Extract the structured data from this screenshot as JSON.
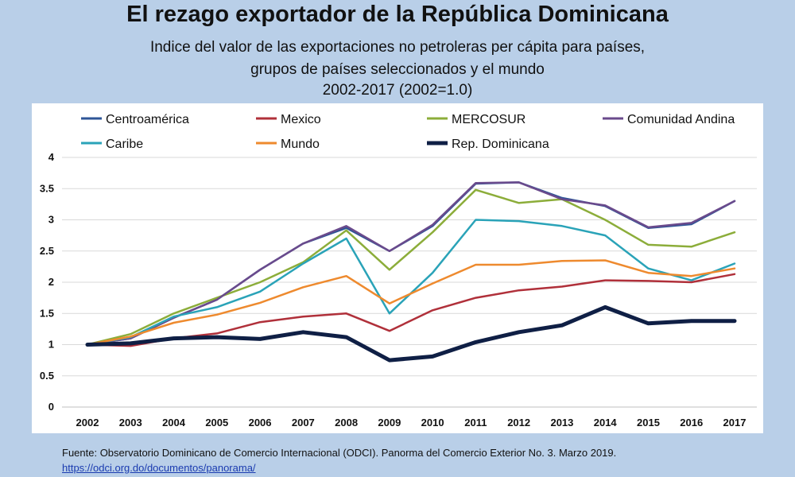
{
  "title": "El rezago exportador de la República Dominicana",
  "subtitle_lines": [
    "Indice del valor de las exportaciones no petroleras per cápita para países,",
    "grupos de países seleccionados y el mundo",
    "2002-2017 (2002=1.0)"
  ],
  "source": {
    "text": "Fuente: Observatorio Dominicano de Comercio Internacional (ODCI). Panorma del Comercio Exterior No. 3. Marzo 2019.",
    "link": "https://odci.org.do/documentos/panorama/"
  },
  "chart_data": {
    "type": "line",
    "x": [
      "2002",
      "2003",
      "2004",
      "2005",
      "2006",
      "2007",
      "2008",
      "2009",
      "2010",
      "2011",
      "2012",
      "2013",
      "2014",
      "2015",
      "2016",
      "2017"
    ],
    "ylim": [
      0,
      4
    ],
    "yticks": [
      "0",
      "0.5",
      "1",
      "1.5",
      "2",
      "2.5",
      "3",
      "3.5",
      "4"
    ],
    "grid": true,
    "legend_position": "top",
    "series": [
      {
        "name": "Centroamérica",
        "color": "#2e5597",
        "width": 2.5,
        "values": [
          1.0,
          1.1,
          1.43,
          1.72,
          2.2,
          2.62,
          2.87,
          2.5,
          2.9,
          3.58,
          3.6,
          3.35,
          3.22,
          2.87,
          2.93,
          3.3
        ]
      },
      {
        "name": "Mexico",
        "color": "#b0303a",
        "width": 2.5,
        "values": [
          1.0,
          0.98,
          1.1,
          1.18,
          1.36,
          1.45,
          1.5,
          1.22,
          1.55,
          1.75,
          1.87,
          1.93,
          2.03,
          2.02,
          2.0,
          2.13
        ]
      },
      {
        "name": "MERCOSUR",
        "color": "#8cad3a",
        "width": 2.5,
        "values": [
          1.0,
          1.17,
          1.5,
          1.75,
          2.0,
          2.32,
          2.83,
          2.2,
          2.8,
          3.48,
          3.27,
          3.33,
          3.0,
          2.6,
          2.57,
          2.8
        ]
      },
      {
        "name": "Comunidad Andina",
        "color": "#6a4a8c",
        "width": 2.5,
        "values": [
          1.0,
          1.1,
          1.43,
          1.72,
          2.2,
          2.62,
          2.9,
          2.5,
          2.92,
          3.59,
          3.6,
          3.33,
          3.23,
          2.88,
          2.95,
          3.3
        ]
      },
      {
        "name": "Caribe",
        "color": "#2aa3b8",
        "width": 2.5,
        "values": [
          1.0,
          1.12,
          1.45,
          1.6,
          1.85,
          2.3,
          2.7,
          1.5,
          2.15,
          3.0,
          2.98,
          2.9,
          2.75,
          2.22,
          2.03,
          2.3
        ]
      },
      {
        "name": "Mundo",
        "color": "#ee8a2e",
        "width": 2.5,
        "values": [
          1.0,
          1.13,
          1.35,
          1.48,
          1.67,
          1.92,
          2.1,
          1.66,
          1.98,
          2.28,
          2.28,
          2.34,
          2.35,
          2.15,
          2.1,
          2.22
        ]
      },
      {
        "name": "Rep. Dominicana",
        "color": "#0f1f45",
        "width": 5,
        "values": [
          1.0,
          1.02,
          1.1,
          1.12,
          1.09,
          1.2,
          1.12,
          0.75,
          0.81,
          1.04,
          1.2,
          1.31,
          1.6,
          1.34,
          1.38,
          1.38
        ]
      }
    ]
  }
}
